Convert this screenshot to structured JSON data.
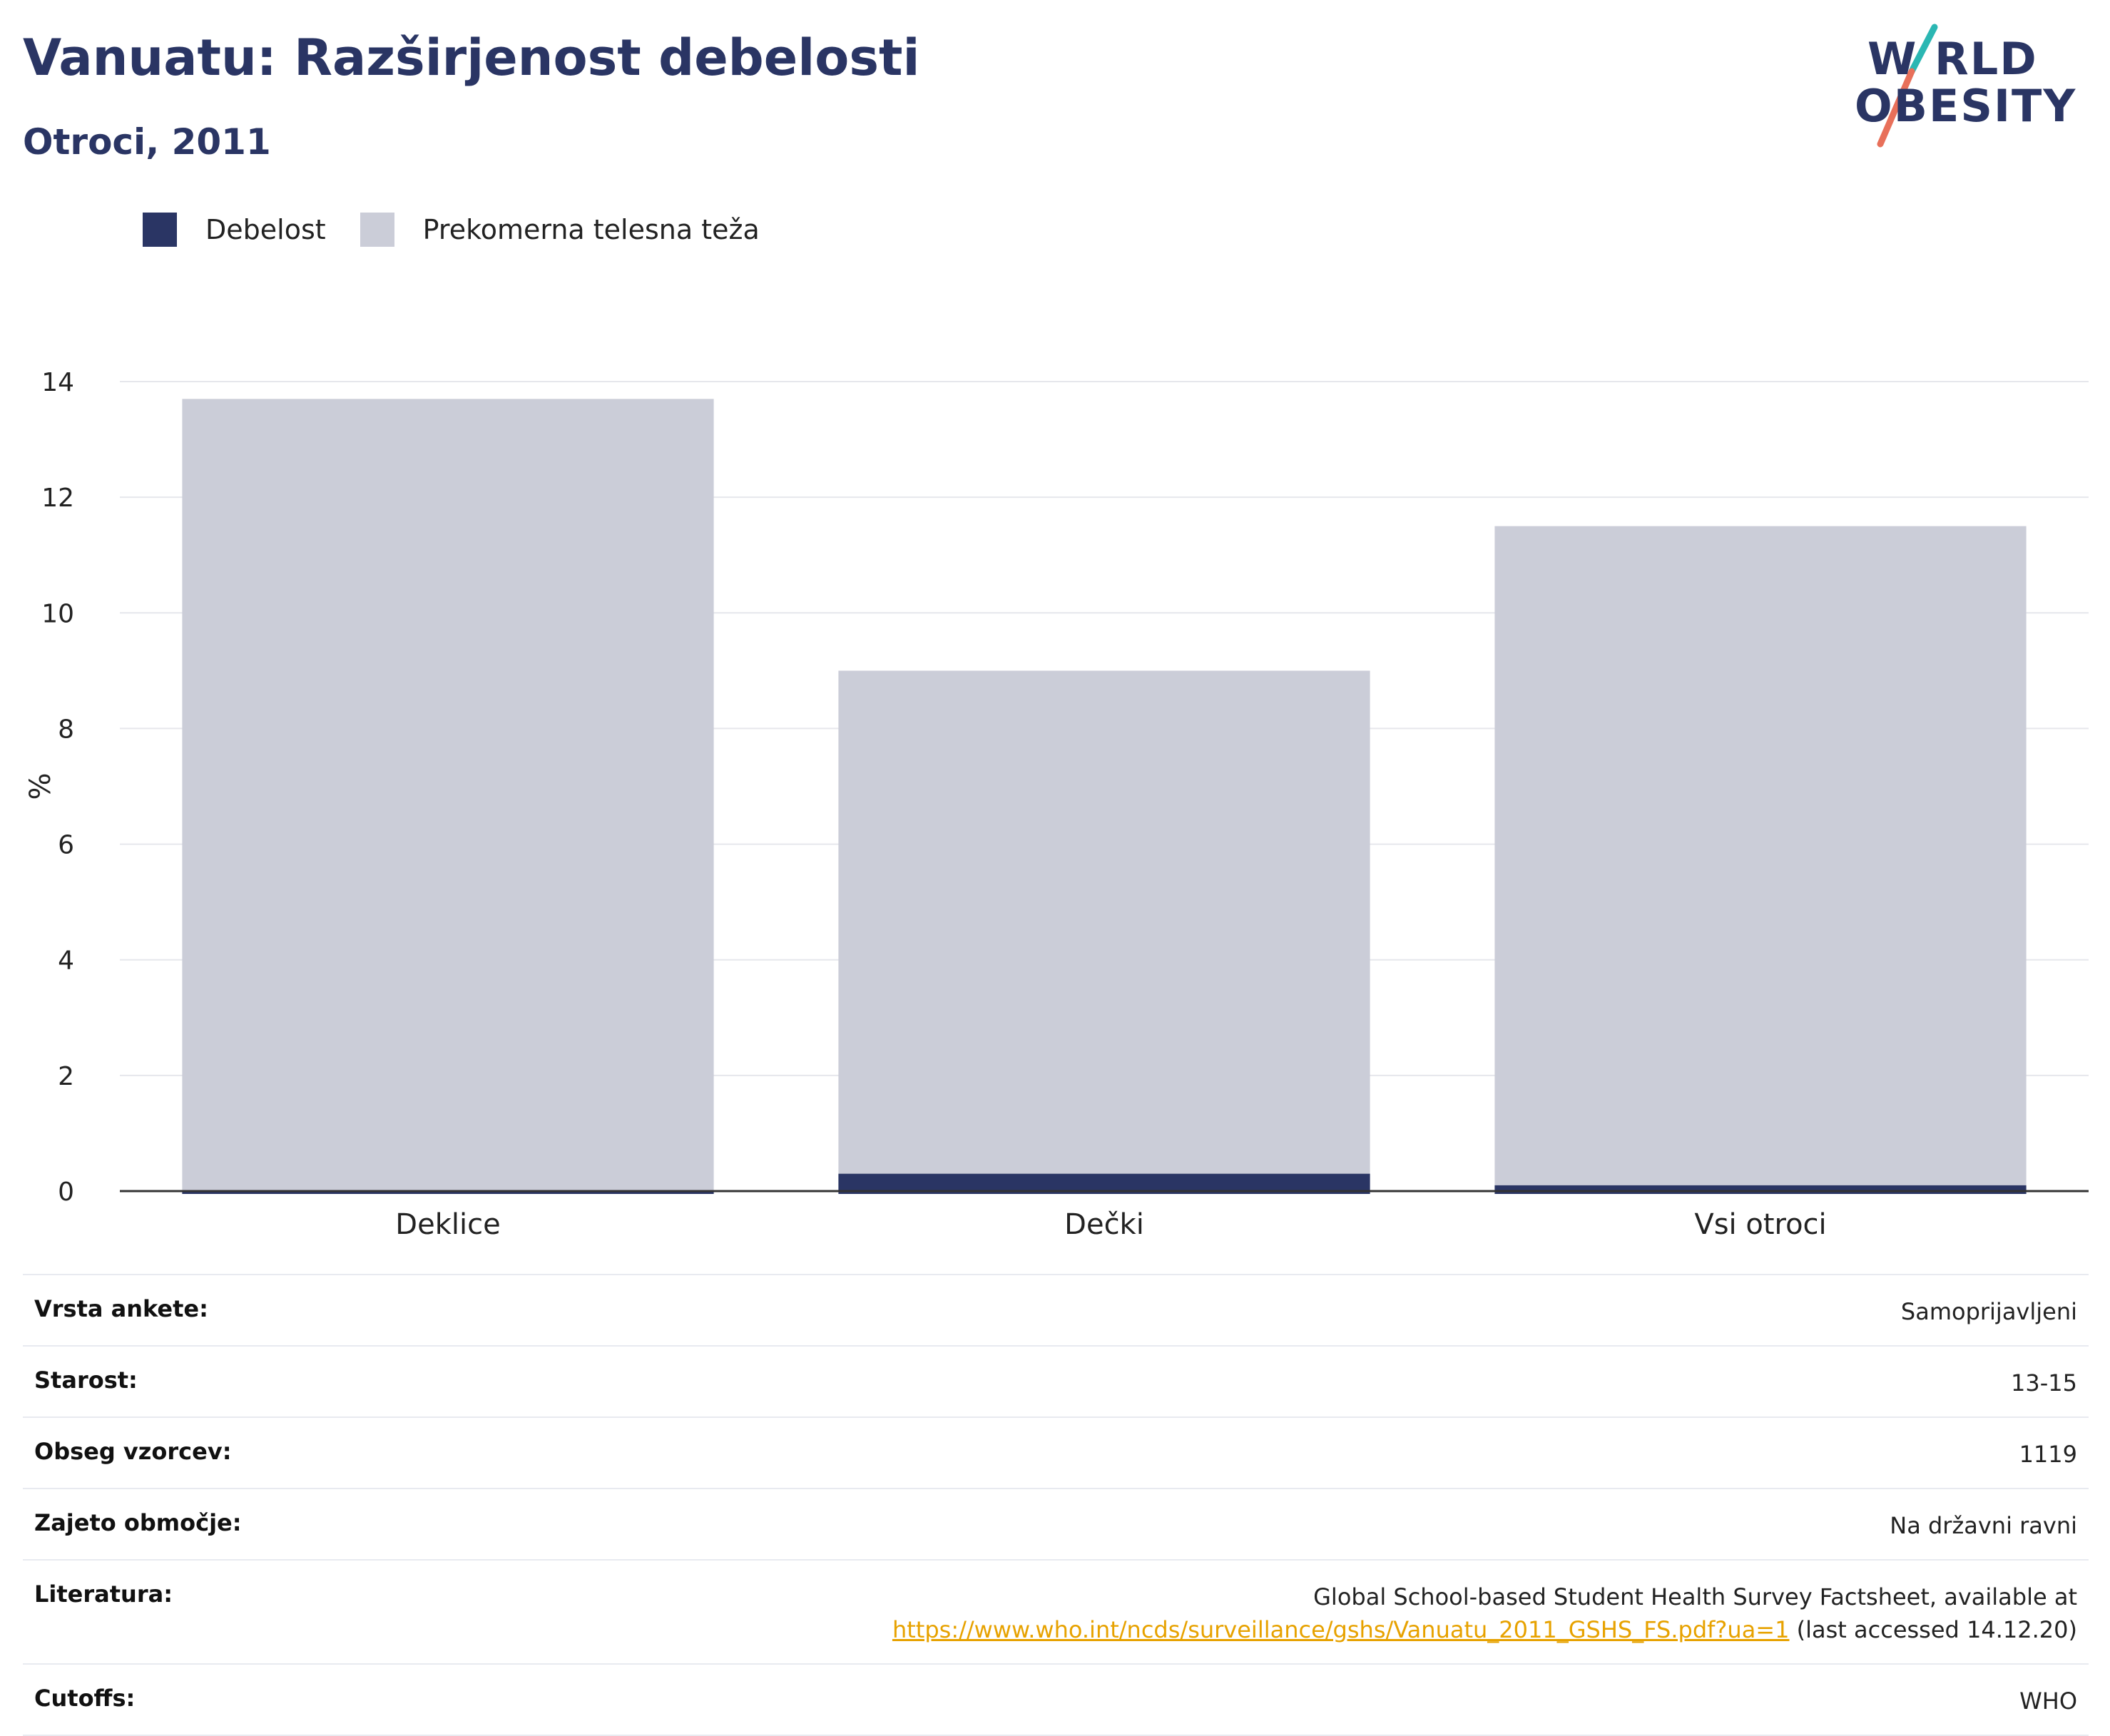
{
  "header": {
    "title": "Vanuatu: Razširjenost debelosti",
    "subtitle": "Otroci, 2011"
  },
  "logo": {
    "line1": "W RLD",
    "line2": "OBESITY",
    "colors": {
      "navy": "#2a3564",
      "teal": "#2bb7b3",
      "coral": "#e8705a"
    }
  },
  "legend": {
    "items": [
      {
        "label": "Debelost",
        "color": "#2a3564"
      },
      {
        "label": "Prekomerna telesna teža",
        "color": "#cbcdd8"
      }
    ]
  },
  "chart_data": {
    "type": "bar",
    "stacked": false,
    "overlay": true,
    "categories": [
      "Deklice",
      "Dečki",
      "Vsi otroci"
    ],
    "series": [
      {
        "name": "Prekomerna telesna teža",
        "color": "#cbcdd8",
        "values": [
          13.7,
          9.0,
          11.5
        ]
      },
      {
        "name": "Debelost",
        "color": "#2a3564",
        "values": [
          0.0,
          0.3,
          0.1
        ]
      }
    ],
    "ylabel": "%",
    "ylim": [
      0,
      14
    ],
    "yticks": [
      "0",
      "2",
      "4",
      "6",
      "8",
      "10",
      "12",
      "14"
    ],
    "grid": true,
    "legend_position": "top-left"
  },
  "meta": {
    "rows": [
      {
        "key": "Vrsta ankete:",
        "value": "Samoprijavljeni"
      },
      {
        "key": "Starost:",
        "value": "13-15"
      },
      {
        "key": "Obseg vzorcev:",
        "value": "1119"
      },
      {
        "key": "Zajeto območje:",
        "value": "Na državni ravni"
      }
    ],
    "literature": {
      "key": "Literatura:",
      "text": "Global School-based Student Health Survey Factsheet, available at",
      "link": "https://www.who.int/ncds/surveillance/gshs/Vanuatu_2011_GSHS_FS.pdf?ua=1",
      "suffix": " (last accessed 14.12.20)"
    },
    "cutoffs": {
      "key": "Cutoffs:",
      "value": "WHO"
    }
  }
}
